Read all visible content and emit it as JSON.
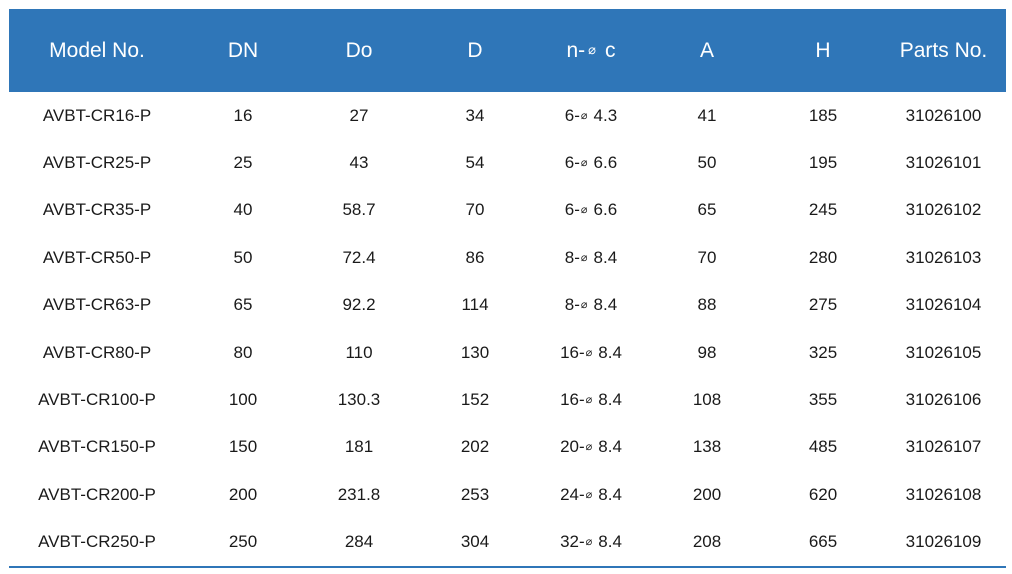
{
  "table": {
    "headers": [
      "Model No.",
      "DN",
      "Do",
      "D",
      "n-",
      "A",
      "H",
      "Parts No."
    ],
    "header_nc_suffix": "c",
    "diameter_symbol": "⌀",
    "rows": [
      {
        "model": "AVBT-CR16-P",
        "dn": "16",
        "do": "27",
        "d": "34",
        "n": "6-",
        "c": "4.3",
        "a": "41",
        "h": "185",
        "parts": "31026100"
      },
      {
        "model": "AVBT-CR25-P",
        "dn": "25",
        "do": "43",
        "d": "54",
        "n": "6-",
        "c": "6.6",
        "a": "50",
        "h": "195",
        "parts": "31026101"
      },
      {
        "model": "AVBT-CR35-P",
        "dn": "40",
        "do": "58.7",
        "d": "70",
        "n": "6-",
        "c": "6.6",
        "a": "65",
        "h": "245",
        "parts": "31026102"
      },
      {
        "model": "AVBT-CR50-P",
        "dn": "50",
        "do": "72.4",
        "d": "86",
        "n": "8-",
        "c": "8.4",
        "a": "70",
        "h": "280",
        "parts": "31026103"
      },
      {
        "model": "AVBT-CR63-P",
        "dn": "65",
        "do": "92.2",
        "d": "114",
        "n": "8-",
        "c": "8.4",
        "a": "88",
        "h": "275",
        "parts": "31026104"
      },
      {
        "model": "AVBT-CR80-P",
        "dn": "80",
        "do": "110",
        "d": "130",
        "n": "16-",
        "c": "8.4",
        "a": "98",
        "h": "325",
        "parts": "31026105"
      },
      {
        "model": "AVBT-CR100-P",
        "dn": "100",
        "do": "130.3",
        "d": "152",
        "n": "16-",
        "c": "8.4",
        "a": "108",
        "h": "355",
        "parts": "31026106"
      },
      {
        "model": "AVBT-CR150-P",
        "dn": "150",
        "do": "181",
        "d": "202",
        "n": "20-",
        "c": "8.4",
        "a": "138",
        "h": "485",
        "parts": "31026107"
      },
      {
        "model": "AVBT-CR200-P",
        "dn": "200",
        "do": "231.8",
        "d": "253",
        "n": "24-",
        "c": "8.4",
        "a": "200",
        "h": "620",
        "parts": "31026108"
      },
      {
        "model": "AVBT-CR250-P",
        "dn": "250",
        "do": "284",
        "d": "304",
        "n": "32-",
        "c": "8.4",
        "a": "208",
        "h": "665",
        "parts": "31026109"
      }
    ]
  },
  "colors": {
    "header_bg": "#2f76b8",
    "header_text": "#ffffff",
    "body_text": "#1a1a1a",
    "rule": "#2f76b8"
  }
}
